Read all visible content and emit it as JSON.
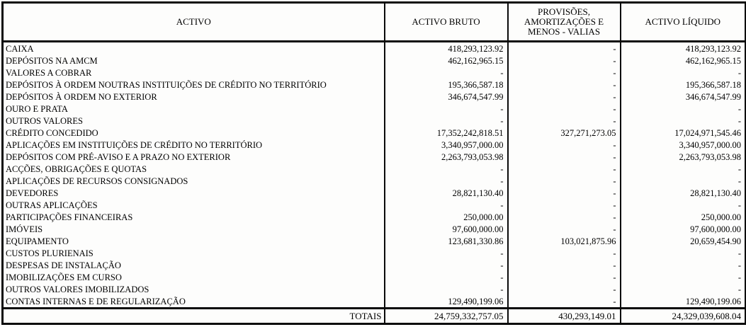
{
  "table": {
    "header": {
      "col_activo": "ACTIVO",
      "col_bruto": "ACTIVO BRUTO",
      "col_prov_line1": "PROVISÕES,",
      "col_prov_line2": "AMORTIZAÇÕES E",
      "col_prov_line3": "MENOS - VALIAS",
      "col_liquido": "ACTIVO LÍQUIDO"
    },
    "rows": [
      {
        "label": "CAIXA",
        "bruto": "418,293,123.92",
        "provisoes": "-",
        "liquido": "418,293,123.92"
      },
      {
        "label": "DEPÓSITOS NA AMCM",
        "bruto": "462,162,965.15",
        "provisoes": "-",
        "liquido": "462,162,965.15"
      },
      {
        "label": "VALORES A COBRAR",
        "bruto": "-",
        "provisoes": "-",
        "liquido": "-"
      },
      {
        "label": "DEPÓSITOS À ORDEM NOUTRAS INSTITUIÇÕES DE CRÉDITO NO TERRITÓRIO",
        "bruto": "195,366,587.18",
        "provisoes": "-",
        "liquido": "195,366,587.18"
      },
      {
        "label": "DEPÓSITOS À ORDEM NO EXTERIOR",
        "bruto": "346,674,547.99",
        "provisoes": "-",
        "liquido": "346,674,547.99"
      },
      {
        "label": "OURO E PRATA",
        "bruto": "-",
        "provisoes": "-",
        "liquido": "-"
      },
      {
        "label": "OUTROS VALORES",
        "bruto": "-",
        "provisoes": "-",
        "liquido": "-"
      },
      {
        "label": "CRÉDITO CONCEDIDO",
        "bruto": "17,352,242,818.51",
        "provisoes": "327,271,273.05",
        "liquido": "17,024,971,545.46"
      },
      {
        "label": "APLICAÇÕES EM INSTITUIÇÕES DE CRÉDITO NO TERRITÓRIO",
        "bruto": "3,340,957,000.00",
        "provisoes": "-",
        "liquido": "3,340,957,000.00"
      },
      {
        "label": "DEPÓSITOS COM PRÉ-AVISO E A PRAZO NO EXTERIOR",
        "bruto": "2,263,793,053.98",
        "provisoes": "-",
        "liquido": "2,263,793,053.98"
      },
      {
        "label": "ACÇÕES, OBRIGAÇÕES E QUOTAS",
        "bruto": "-",
        "provisoes": "-",
        "liquido": "-"
      },
      {
        "label": "APLICAÇÕES DE RECURSOS CONSIGNADOS",
        "bruto": "-",
        "provisoes": "-",
        "liquido": "-"
      },
      {
        "label": "DEVEDORES",
        "bruto": "28,821,130.40",
        "provisoes": "-",
        "liquido": "28,821,130.40"
      },
      {
        "label": "OUTRAS APLICAÇÕES",
        "bruto": "-",
        "provisoes": "-",
        "liquido": "-"
      },
      {
        "label": "PARTICIPAÇÕES FINANCEIRAS",
        "bruto": "250,000.00",
        "provisoes": "-",
        "liquido": "250,000.00"
      },
      {
        "label": "IMÓVEIS",
        "bruto": "97,600,000.00",
        "provisoes": "-",
        "liquido": "97,600,000.00"
      },
      {
        "label": "EQUIPAMENTO",
        "bruto": "123,681,330.86",
        "provisoes": "103,021,875.96",
        "liquido": "20,659,454.90"
      },
      {
        "label": "CUSTOS PLURIENAIS",
        "bruto": "-",
        "provisoes": "-",
        "liquido": "-"
      },
      {
        "label": "DESPESAS DE INSTALAÇÃO",
        "bruto": "-",
        "provisoes": "-",
        "liquido": "-"
      },
      {
        "label": "IMOBILIZAÇÕES EM CURSO",
        "bruto": "-",
        "provisoes": "-",
        "liquido": "-"
      },
      {
        "label": "OUTROS VALORES IMOBILIZADOS",
        "bruto": "-",
        "provisoes": "-",
        "liquido": "-"
      },
      {
        "label": "CONTAS INTERNAS E DE REGULARIZAÇÃO",
        "bruto": "129,490,199.06",
        "provisoes": "-",
        "liquido": "129,490,199.06"
      }
    ],
    "totals": {
      "label": "TOTAIS",
      "bruto": "24,759,332,757.05",
      "provisoes": "430,293,149.01",
      "liquido": "24,329,039,608.04"
    }
  }
}
